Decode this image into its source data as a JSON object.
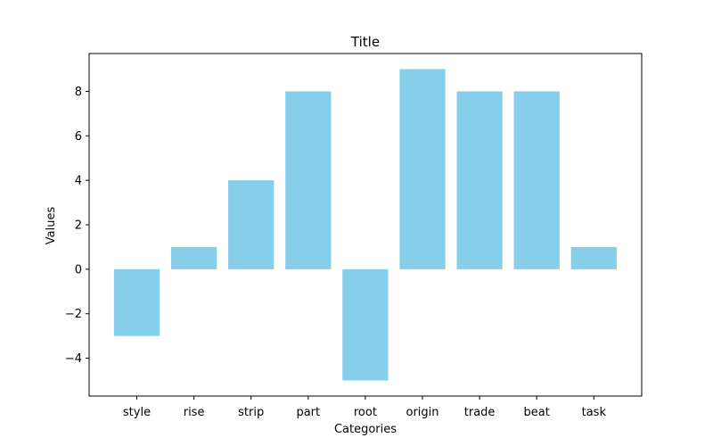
{
  "chart_data": {
    "type": "bar",
    "title": "Title",
    "xlabel": "Categories",
    "ylabel": "Values",
    "categories": [
      "style",
      "rise",
      "strip",
      "part",
      "root",
      "origin",
      "trade",
      "beat",
      "task"
    ],
    "values": [
      -3,
      1,
      4,
      8,
      -5,
      9,
      8,
      8,
      1
    ],
    "ylim": [
      -5.7,
      9.7
    ],
    "yticks": [
      -4,
      -2,
      0,
      2,
      4,
      6,
      8
    ],
    "ytick_labels": [
      "−4",
      "−2",
      "0",
      "2",
      "4",
      "6",
      "8"
    ],
    "bar_color": "#87CEEB",
    "grid": false,
    "legend": "none"
  }
}
